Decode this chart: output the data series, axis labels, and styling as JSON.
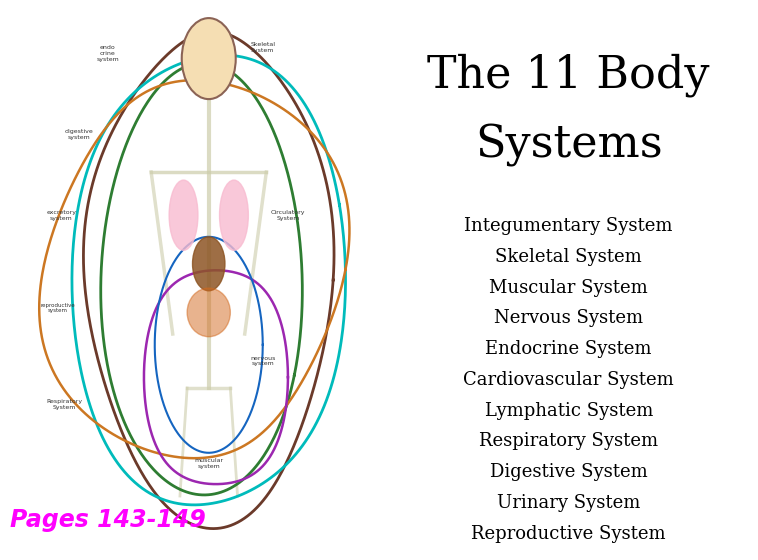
{
  "title_line1": "The 11 Body",
  "title_line2": "Systems",
  "title_fontsize": 32,
  "title_family": "serif",
  "systems": [
    "Integumentary System",
    "Skeletal System",
    "Muscular System",
    "Nervous System",
    "Endocrine System",
    "Cardiovascular System",
    "Lymphatic System",
    "Respiratory System",
    "Digestive System",
    "Urinary System",
    "Reproductive System"
  ],
  "systems_fontsize": 13,
  "pages_text": "Pages 143-149",
  "pages_fontsize": 17,
  "pages_color": "#FF00FF",
  "background_color": "#ffffff",
  "text_color": "#000000"
}
